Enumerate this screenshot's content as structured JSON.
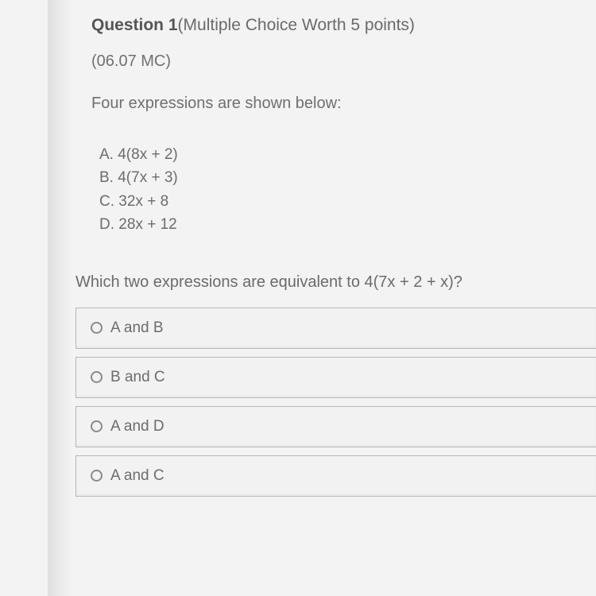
{
  "header": {
    "question_label": "Question 1",
    "question_meta": "(Multiple Choice Worth 5 points)"
  },
  "mc_code": "(06.07 MC)",
  "prompt": "Four expressions are shown below:",
  "expressions": {
    "a": "A. 4(8x + 2)",
    "b": "B. 4(7x + 3)",
    "c": "C. 32x + 8",
    "d": "D. 28x + 12"
  },
  "question_text": "Which two expressions are equivalent to 4(7x + 2 + x)?",
  "options": [
    {
      "label": "A and B"
    },
    {
      "label": "B and C"
    },
    {
      "label": "A and D"
    },
    {
      "label": "A and C"
    }
  ],
  "colors": {
    "background": "#f3f3f3",
    "text_primary": "#6a6a6a",
    "border": "#b8b8b8"
  }
}
